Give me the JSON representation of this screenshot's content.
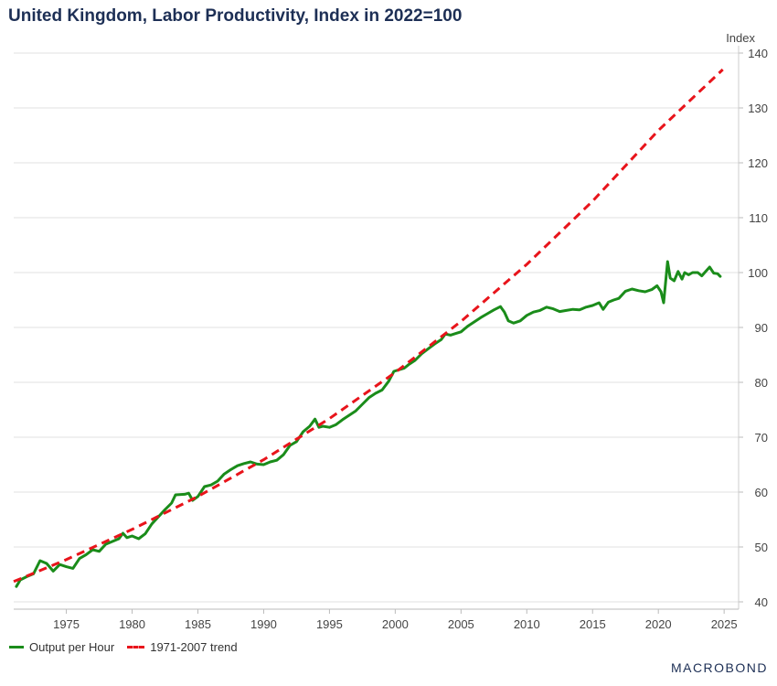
{
  "chart_data": {
    "type": "line",
    "title": "United Kingdom, Labor Productivity, Index in 2022=100",
    "ylabel": "Index",
    "xlim": [
      1971,
      2026.1
    ],
    "ylim": [
      40,
      140
    ],
    "x_ticks": [
      "1975",
      "1980",
      "1985",
      "1990",
      "1995",
      "2000",
      "2005",
      "2010",
      "2015",
      "2020",
      "2025"
    ],
    "y_ticks": [
      "40",
      "50",
      "60",
      "70",
      "80",
      "90",
      "100",
      "110",
      "120",
      "130",
      "140"
    ],
    "grid": "horizontal",
    "legend_position": "bottom-left",
    "series": [
      {
        "name": "Output per Hour",
        "color": "#1a8c1a",
        "style": "solid",
        "points": [
          [
            1971.2,
            42.8
          ],
          [
            1971.5,
            44.0
          ],
          [
            1972.0,
            44.6
          ],
          [
            1972.5,
            45.1
          ],
          [
            1973.0,
            47.5
          ],
          [
            1973.5,
            47.0
          ],
          [
            1974.0,
            45.6
          ],
          [
            1974.5,
            46.8
          ],
          [
            1975.0,
            46.4
          ],
          [
            1975.5,
            46.1
          ],
          [
            1976.0,
            47.9
          ],
          [
            1976.5,
            48.6
          ],
          [
            1977.0,
            49.5
          ],
          [
            1977.5,
            49.2
          ],
          [
            1978.0,
            50.5
          ],
          [
            1978.5,
            51.0
          ],
          [
            1979.0,
            51.5
          ],
          [
            1979.3,
            52.5
          ],
          [
            1979.6,
            51.7
          ],
          [
            1980.0,
            52.0
          ],
          [
            1980.5,
            51.5
          ],
          [
            1981.0,
            52.4
          ],
          [
            1981.5,
            54.2
          ],
          [
            1982.0,
            55.5
          ],
          [
            1982.5,
            56.8
          ],
          [
            1983.0,
            58.0
          ],
          [
            1983.3,
            59.5
          ],
          [
            1984.0,
            59.6
          ],
          [
            1984.3,
            59.8
          ],
          [
            1984.6,
            58.5
          ],
          [
            1985.0,
            59.2
          ],
          [
            1985.5,
            61.0
          ],
          [
            1986.0,
            61.3
          ],
          [
            1986.5,
            62.0
          ],
          [
            1987.0,
            63.3
          ],
          [
            1987.5,
            64.1
          ],
          [
            1988.0,
            64.8
          ],
          [
            1988.5,
            65.2
          ],
          [
            1989.0,
            65.5
          ],
          [
            1989.5,
            65.1
          ],
          [
            1990.0,
            65.0
          ],
          [
            1990.5,
            65.5
          ],
          [
            1991.0,
            65.8
          ],
          [
            1991.5,
            66.8
          ],
          [
            1992.0,
            68.5
          ],
          [
            1992.5,
            69.2
          ],
          [
            1993.0,
            71.0
          ],
          [
            1993.5,
            72.0
          ],
          [
            1993.9,
            73.3
          ],
          [
            1994.2,
            71.8
          ],
          [
            1994.5,
            72.0
          ],
          [
            1995.0,
            71.8
          ],
          [
            1995.5,
            72.3
          ],
          [
            1996.0,
            73.2
          ],
          [
            1996.5,
            74.0
          ],
          [
            1997.0,
            74.8
          ],
          [
            1997.5,
            76.0
          ],
          [
            1998.0,
            77.2
          ],
          [
            1998.5,
            78.0
          ],
          [
            1999.0,
            78.6
          ],
          [
            1999.5,
            80.2
          ],
          [
            1999.9,
            82.0
          ],
          [
            2000.3,
            82.3
          ],
          [
            2000.7,
            82.6
          ],
          [
            2001.0,
            83.2
          ],
          [
            2001.5,
            84.0
          ],
          [
            2002.0,
            85.2
          ],
          [
            2002.5,
            86.1
          ],
          [
            2003.0,
            87.0
          ],
          [
            2003.5,
            87.8
          ],
          [
            2003.8,
            88.8
          ],
          [
            2004.2,
            88.6
          ],
          [
            2004.6,
            88.9
          ],
          [
            2005.0,
            89.2
          ],
          [
            2005.5,
            90.2
          ],
          [
            2006.0,
            91.0
          ],
          [
            2006.5,
            91.8
          ],
          [
            2007.0,
            92.5
          ],
          [
            2007.5,
            93.2
          ],
          [
            2008.0,
            93.8
          ],
          [
            2008.3,
            92.8
          ],
          [
            2008.6,
            91.2
          ],
          [
            2009.0,
            90.8
          ],
          [
            2009.5,
            91.2
          ],
          [
            2010.0,
            92.2
          ],
          [
            2010.5,
            92.8
          ],
          [
            2011.0,
            93.1
          ],
          [
            2011.5,
            93.7
          ],
          [
            2012.0,
            93.4
          ],
          [
            2012.5,
            92.9
          ],
          [
            2013.0,
            93.1
          ],
          [
            2013.5,
            93.3
          ],
          [
            2014.0,
            93.2
          ],
          [
            2014.5,
            93.7
          ],
          [
            2015.0,
            94.0
          ],
          [
            2015.5,
            94.5
          ],
          [
            2015.8,
            93.3
          ],
          [
            2016.2,
            94.6
          ],
          [
            2016.6,
            95.0
          ],
          [
            2017.0,
            95.3
          ],
          [
            2017.5,
            96.6
          ],
          [
            2018.0,
            97.0
          ],
          [
            2018.5,
            96.7
          ],
          [
            2019.0,
            96.5
          ],
          [
            2019.5,
            96.9
          ],
          [
            2019.9,
            97.6
          ],
          [
            2020.2,
            96.5
          ],
          [
            2020.4,
            94.5
          ],
          [
            2020.7,
            102.0
          ],
          [
            2020.9,
            99.0
          ],
          [
            2021.2,
            98.5
          ],
          [
            2021.5,
            100.2
          ],
          [
            2021.8,
            98.8
          ],
          [
            2022.0,
            100.0
          ],
          [
            2022.3,
            99.6
          ],
          [
            2022.6,
            100.0
          ],
          [
            2023.0,
            100.0
          ],
          [
            2023.3,
            99.4
          ],
          [
            2023.6,
            100.2
          ],
          [
            2023.9,
            101.0
          ],
          [
            2024.2,
            99.9
          ],
          [
            2024.5,
            99.8
          ],
          [
            2024.7,
            99.3
          ]
        ]
      },
      {
        "name": "1971-2007 trend",
        "color": "#e8141b",
        "style": "dashed",
        "points": [
          [
            1971.0,
            43.7
          ],
          [
            1975.0,
            47.7
          ],
          [
            1980.0,
            53.2
          ],
          [
            1985.0,
            59.2
          ],
          [
            1990.0,
            65.9
          ],
          [
            1995.0,
            73.4
          ],
          [
            2000.0,
            81.8
          ],
          [
            2005.0,
            91.1
          ],
          [
            2010.0,
            101.5
          ],
          [
            2015.0,
            113.0
          ],
          [
            2020.0,
            125.9
          ],
          [
            2024.9,
            137.0
          ]
        ]
      }
    ]
  },
  "legend": {
    "series_1": "Output per Hour",
    "series_2": "1971-2007 trend"
  },
  "brand": {
    "text": "MACROBOND"
  }
}
